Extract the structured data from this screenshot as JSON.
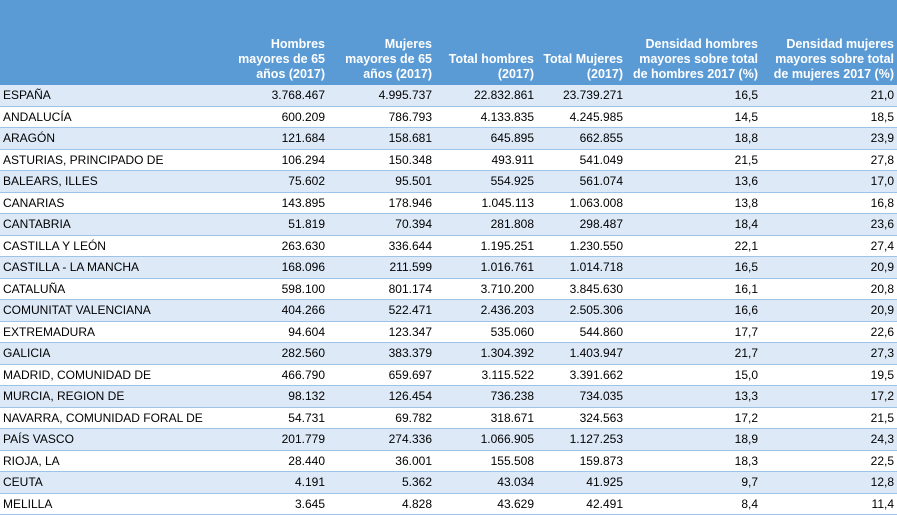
{
  "table": {
    "headers": [
      "",
      "Hombres mayores de 65 años (2017)",
      "Mujeres mayores de 65 años (2017)",
      "Total hombres (2017)",
      "Total Mujeres (2017)",
      "Densidad hombres mayores sobre total de hombres 2017 (%)",
      "Densidad mujeres mayores sobre total de mujeres 2017 (%)"
    ],
    "rows": [
      [
        "ESPAÑA",
        "3.768.467",
        "4.995.737",
        "22.832.861",
        "23.739.271",
        "16,5",
        "21,0"
      ],
      [
        "ANDALUCÍA",
        "600.209",
        "786.793",
        "4.133.835",
        "4.245.985",
        "14,5",
        "18,5"
      ],
      [
        "ARAGÓN",
        "121.684",
        "158.681",
        "645.895",
        "662.855",
        "18,8",
        "23,9"
      ],
      [
        "ASTURIAS, PRINCIPADO DE",
        "106.294",
        "150.348",
        "493.911",
        "541.049",
        "21,5",
        "27,8"
      ],
      [
        "BALEARS, ILLES",
        "75.602",
        "95.501",
        "554.925",
        "561.074",
        "13,6",
        "17,0"
      ],
      [
        "CANARIAS",
        "143.895",
        "178.946",
        "1.045.113",
        "1.063.008",
        "13,8",
        "16,8"
      ],
      [
        "CANTABRIA",
        "51.819",
        "70.394",
        "281.808",
        "298.487",
        "18,4",
        "23,6"
      ],
      [
        "CASTILLA Y LEÓN",
        "263.630",
        "336.644",
        "1.195.251",
        "1.230.550",
        "22,1",
        "27,4"
      ],
      [
        "CASTILLA - LA MANCHA",
        "168.096",
        "211.599",
        "1.016.761",
        "1.014.718",
        "16,5",
        "20,9"
      ],
      [
        "CATALUÑA",
        "598.100",
        "801.174",
        "3.710.200",
        "3.845.630",
        "16,1",
        "20,8"
      ],
      [
        "COMUNITAT VALENCIANA",
        "404.266",
        "522.471",
        "2.436.203",
        "2.505.306",
        "16,6",
        "20,9"
      ],
      [
        "EXTREMADURA",
        "94.604",
        "123.347",
        "535.060",
        "544.860",
        "17,7",
        "22,6"
      ],
      [
        "GALICIA",
        "282.560",
        "383.379",
        "1.304.392",
        "1.403.947",
        "21,7",
        "27,3"
      ],
      [
        "MADRID, COMUNIDAD DE",
        "466.790",
        "659.697",
        "3.115.522",
        "3.391.662",
        "15,0",
        "19,5"
      ],
      [
        "MURCIA, REGION DE",
        "98.132",
        "126.454",
        "736.238",
        "734.035",
        "13,3",
        "17,2"
      ],
      [
        "NAVARRA, COMUNIDAD FORAL DE",
        "54.731",
        "69.782",
        "318.671",
        "324.563",
        "17,2",
        "21,5"
      ],
      [
        "PAÍS VASCO",
        "201.779",
        "274.336",
        "1.066.905",
        "1.127.253",
        "18,9",
        "24,3"
      ],
      [
        "RIOJA, LA",
        "28.440",
        "36.001",
        "155.508",
        "159.873",
        "18,3",
        "22,5"
      ],
      [
        "CEUTA",
        "4.191",
        "5.362",
        "43.034",
        "41.925",
        "9,7",
        "12,8"
      ],
      [
        "MELILLA",
        "3.645",
        "4.828",
        "43.629",
        "42.491",
        "8,4",
        "11,4"
      ]
    ]
  }
}
